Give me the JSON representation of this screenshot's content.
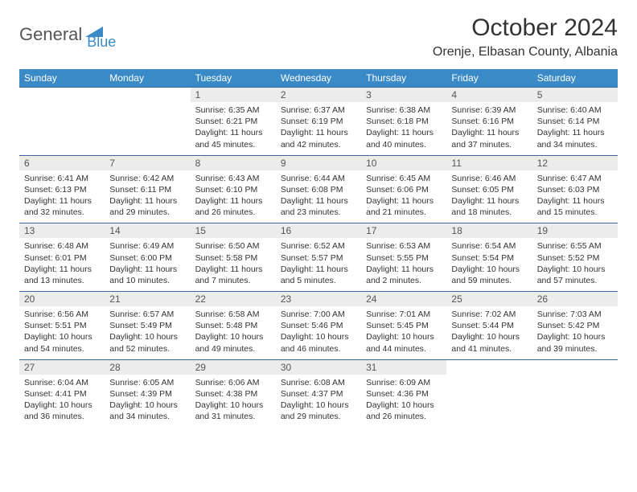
{
  "logo": {
    "part1": "General",
    "part2": "Blue"
  },
  "title": "October 2024",
  "location": "Orenje, Elbasan County, Albania",
  "colors": {
    "header_bg": "#3a8ac8",
    "header_text": "#ffffff",
    "daynum_bg": "#ececec",
    "daynum_text": "#555555",
    "body_text": "#333333",
    "row_border": "#3a6a9a"
  },
  "weekdays": [
    "Sunday",
    "Monday",
    "Tuesday",
    "Wednesday",
    "Thursday",
    "Friday",
    "Saturday"
  ],
  "weeks": [
    {
      "nums": [
        "",
        "",
        "1",
        "2",
        "3",
        "4",
        "5"
      ],
      "info": [
        "",
        "",
        "Sunrise: 6:35 AM\nSunset: 6:21 PM\nDaylight: 11 hours and 45 minutes.",
        "Sunrise: 6:37 AM\nSunset: 6:19 PM\nDaylight: 11 hours and 42 minutes.",
        "Sunrise: 6:38 AM\nSunset: 6:18 PM\nDaylight: 11 hours and 40 minutes.",
        "Sunrise: 6:39 AM\nSunset: 6:16 PM\nDaylight: 11 hours and 37 minutes.",
        "Sunrise: 6:40 AM\nSunset: 6:14 PM\nDaylight: 11 hours and 34 minutes."
      ]
    },
    {
      "nums": [
        "6",
        "7",
        "8",
        "9",
        "10",
        "11",
        "12"
      ],
      "info": [
        "Sunrise: 6:41 AM\nSunset: 6:13 PM\nDaylight: 11 hours and 32 minutes.",
        "Sunrise: 6:42 AM\nSunset: 6:11 PM\nDaylight: 11 hours and 29 minutes.",
        "Sunrise: 6:43 AM\nSunset: 6:10 PM\nDaylight: 11 hours and 26 minutes.",
        "Sunrise: 6:44 AM\nSunset: 6:08 PM\nDaylight: 11 hours and 23 minutes.",
        "Sunrise: 6:45 AM\nSunset: 6:06 PM\nDaylight: 11 hours and 21 minutes.",
        "Sunrise: 6:46 AM\nSunset: 6:05 PM\nDaylight: 11 hours and 18 minutes.",
        "Sunrise: 6:47 AM\nSunset: 6:03 PM\nDaylight: 11 hours and 15 minutes."
      ]
    },
    {
      "nums": [
        "13",
        "14",
        "15",
        "16",
        "17",
        "18",
        "19"
      ],
      "info": [
        "Sunrise: 6:48 AM\nSunset: 6:01 PM\nDaylight: 11 hours and 13 minutes.",
        "Sunrise: 6:49 AM\nSunset: 6:00 PM\nDaylight: 11 hours and 10 minutes.",
        "Sunrise: 6:50 AM\nSunset: 5:58 PM\nDaylight: 11 hours and 7 minutes.",
        "Sunrise: 6:52 AM\nSunset: 5:57 PM\nDaylight: 11 hours and 5 minutes.",
        "Sunrise: 6:53 AM\nSunset: 5:55 PM\nDaylight: 11 hours and 2 minutes.",
        "Sunrise: 6:54 AM\nSunset: 5:54 PM\nDaylight: 10 hours and 59 minutes.",
        "Sunrise: 6:55 AM\nSunset: 5:52 PM\nDaylight: 10 hours and 57 minutes."
      ]
    },
    {
      "nums": [
        "20",
        "21",
        "22",
        "23",
        "24",
        "25",
        "26"
      ],
      "info": [
        "Sunrise: 6:56 AM\nSunset: 5:51 PM\nDaylight: 10 hours and 54 minutes.",
        "Sunrise: 6:57 AM\nSunset: 5:49 PM\nDaylight: 10 hours and 52 minutes.",
        "Sunrise: 6:58 AM\nSunset: 5:48 PM\nDaylight: 10 hours and 49 minutes.",
        "Sunrise: 7:00 AM\nSunset: 5:46 PM\nDaylight: 10 hours and 46 minutes.",
        "Sunrise: 7:01 AM\nSunset: 5:45 PM\nDaylight: 10 hours and 44 minutes.",
        "Sunrise: 7:02 AM\nSunset: 5:44 PM\nDaylight: 10 hours and 41 minutes.",
        "Sunrise: 7:03 AM\nSunset: 5:42 PM\nDaylight: 10 hours and 39 minutes."
      ]
    },
    {
      "nums": [
        "27",
        "28",
        "29",
        "30",
        "31",
        "",
        ""
      ],
      "info": [
        "Sunrise: 6:04 AM\nSunset: 4:41 PM\nDaylight: 10 hours and 36 minutes.",
        "Sunrise: 6:05 AM\nSunset: 4:39 PM\nDaylight: 10 hours and 34 minutes.",
        "Sunrise: 6:06 AM\nSunset: 4:38 PM\nDaylight: 10 hours and 31 minutes.",
        "Sunrise: 6:08 AM\nSunset: 4:37 PM\nDaylight: 10 hours and 29 minutes.",
        "Sunrise: 6:09 AM\nSunset: 4:36 PM\nDaylight: 10 hours and 26 minutes.",
        "",
        ""
      ]
    }
  ]
}
